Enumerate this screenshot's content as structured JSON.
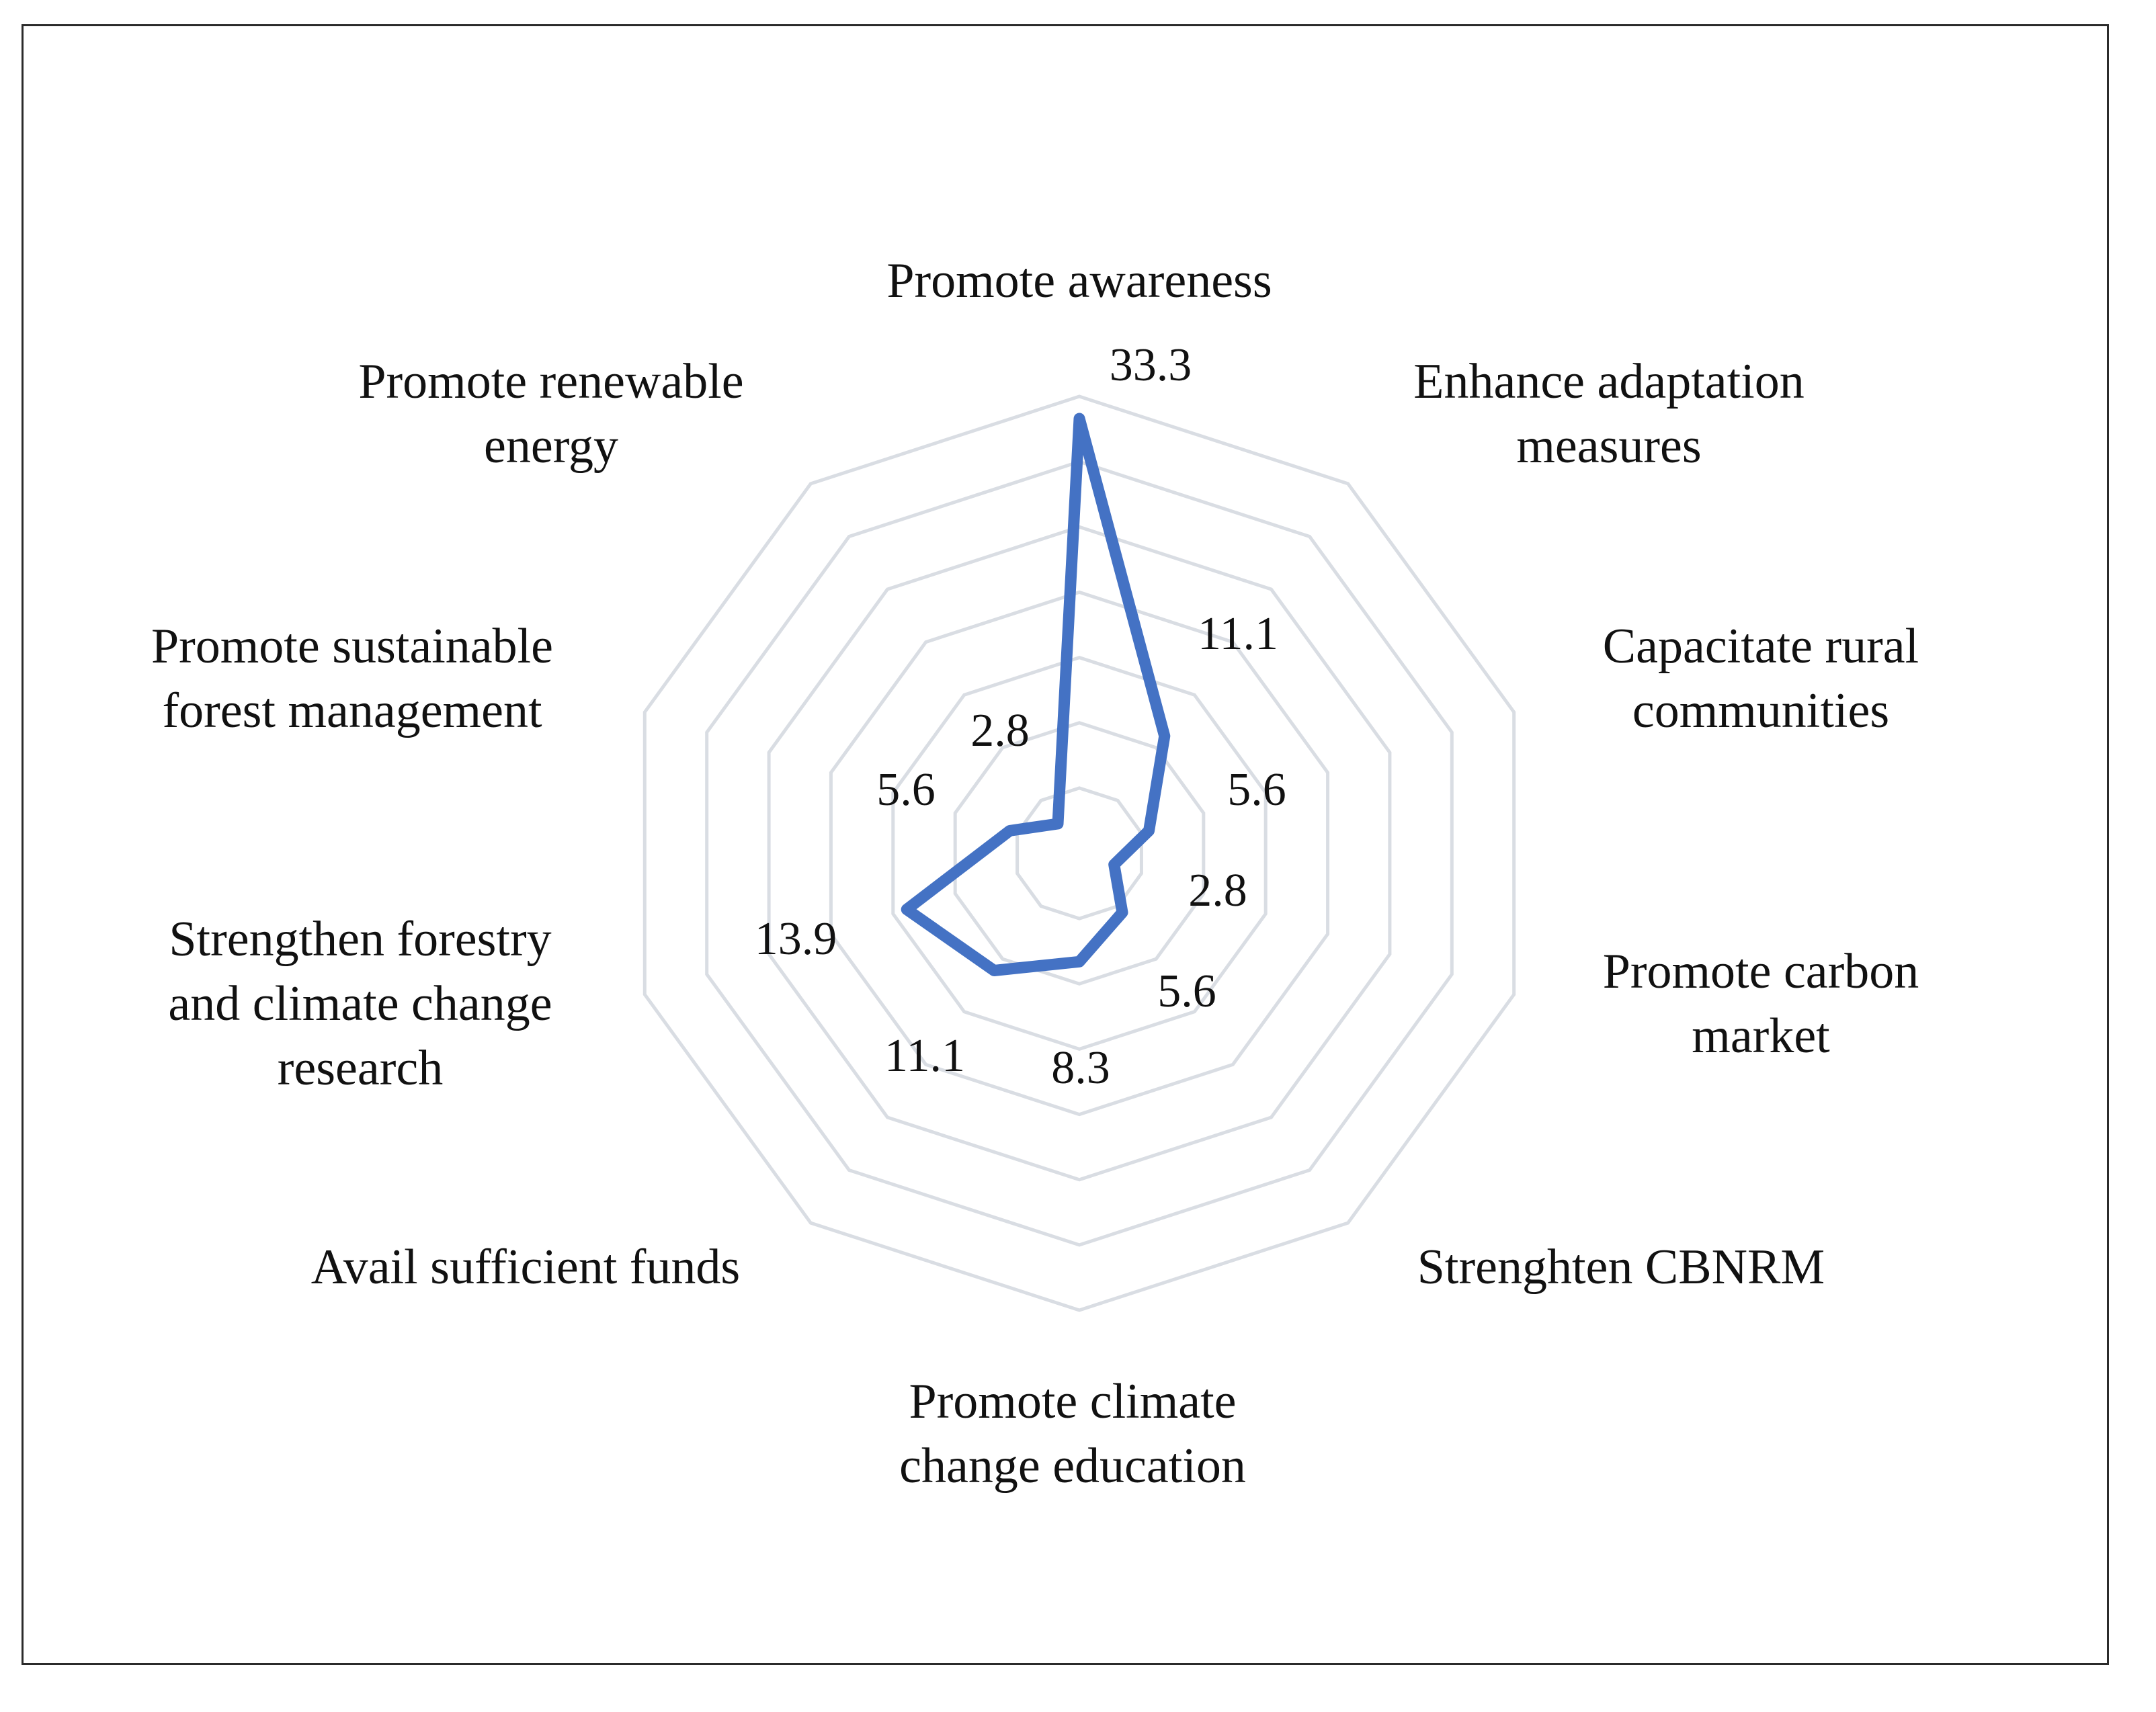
{
  "chart_data": {
    "type": "radar",
    "title": "",
    "categories": [
      "Promote awareness",
      "Enhance adaptation measures",
      "Capacitate rural communities",
      "Promote carbon market",
      "Strenghten CBNRM",
      "Promote climate change education",
      "Avail sufficient funds",
      "Strengthen forestry and climate change research",
      "Promote sustainable forest management",
      "Promote renewable energy"
    ],
    "series": [
      {
        "values": [
          33.3,
          11.1,
          5.6,
          2.8,
          5.6,
          8.3,
          11.1,
          13.9,
          5.6,
          2.8
        ],
        "data_labels": [
          "33.3",
          "11.1",
          "5.6",
          "2.8",
          "5.6",
          "8.3",
          "11.1",
          "13.9",
          "5.6",
          "2.8"
        ],
        "color": "#4472c4"
      }
    ],
    "rmax": 35,
    "grid_rings": 7,
    "grid": true,
    "legend": "none"
  },
  "colors": {
    "series": "#4472c4",
    "grid": "#d9dde3",
    "border": "#2b2b2b"
  }
}
